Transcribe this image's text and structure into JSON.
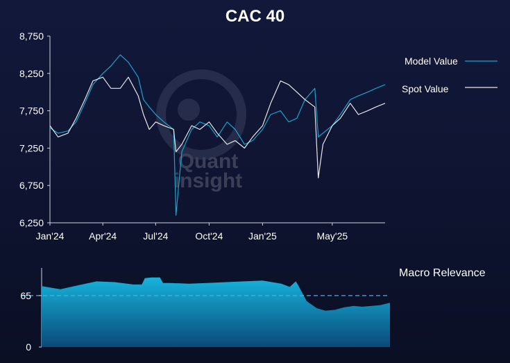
{
  "title": "CAC 40",
  "watermark": {
    "line1": "Quant",
    "line2": "insight"
  },
  "colors": {
    "background": "#0e1430",
    "model_line": "#1aa3cc",
    "spot_line": "#e8e8e8",
    "area_top": "#17b3dc",
    "area_bottom": "#0a4a78",
    "threshold": "#3fb4e6"
  },
  "legend": {
    "model_label": "Model Value",
    "spot_label": "Spot Value"
  },
  "relevance_label": "Macro Relevance",
  "chart_data": [
    {
      "type": "line",
      "title": "CAC 40",
      "xlabel": "",
      "ylabel": "",
      "x_ticks": [
        "Jan'24",
        "Apr'24",
        "Jul'24",
        "Oct'24",
        "Jan'25",
        "May'25"
      ],
      "x_tick_positions": [
        "2024-01-01",
        "2024-04-01",
        "2024-07-01",
        "2024-10-01",
        "2025-01-01",
        "2025-05-01"
      ],
      "xlim": [
        "2024-01-01",
        "2025-07-31"
      ],
      "y_ticks": [
        "6,250",
        "6,750",
        "7,250",
        "7,750",
        "8,250",
        "8,750"
      ],
      "y_tick_values": [
        6250,
        6750,
        7250,
        7750,
        8250,
        8750
      ],
      "ylim": [
        6250,
        8750
      ],
      "grid": false,
      "legend_position": "right",
      "x": [
        "2024-01-01",
        "2024-01-15",
        "2024-02-01",
        "2024-02-15",
        "2024-03-01",
        "2024-03-15",
        "2024-04-01",
        "2024-04-15",
        "2024-05-01",
        "2024-05-15",
        "2024-06-01",
        "2024-06-10",
        "2024-06-20",
        "2024-07-01",
        "2024-07-15",
        "2024-08-01",
        "2024-08-05",
        "2024-08-15",
        "2024-09-01",
        "2024-09-15",
        "2024-10-01",
        "2024-10-15",
        "2024-11-01",
        "2024-11-15",
        "2024-12-01",
        "2024-12-15",
        "2025-01-01",
        "2025-01-15",
        "2025-02-01",
        "2025-02-15",
        "2025-03-01",
        "2025-03-15",
        "2025-04-01",
        "2025-04-07",
        "2025-04-15",
        "2025-05-01",
        "2025-05-15",
        "2025-06-01",
        "2025-06-15",
        "2025-07-01",
        "2025-07-15",
        "2025-07-31"
      ],
      "series": [
        {
          "name": "Model Value",
          "values": [
            7520,
            7450,
            7480,
            7600,
            7850,
            8100,
            8250,
            8350,
            8500,
            8400,
            8200,
            7900,
            7800,
            7700,
            7600,
            7500,
            6350,
            7200,
            7500,
            7600,
            7550,
            7400,
            7600,
            7500,
            7300,
            7350,
            7500,
            7700,
            7750,
            7600,
            7650,
            7900,
            8050,
            7400,
            7450,
            7550,
            7700,
            7900,
            7950,
            8000,
            8050,
            8100
          ]
        },
        {
          "name": "Spot Value",
          "values": [
            7550,
            7400,
            7450,
            7650,
            7900,
            8150,
            8200,
            8050,
            8050,
            8200,
            7950,
            7700,
            7500,
            7600,
            7550,
            7500,
            7200,
            7300,
            7550,
            7500,
            7600,
            7450,
            7300,
            7350,
            7250,
            7400,
            7550,
            7850,
            8150,
            8100,
            8000,
            7900,
            7800,
            6850,
            7300,
            7550,
            7650,
            7850,
            7700,
            7750,
            7800,
            7850
          ]
        }
      ]
    },
    {
      "type": "area",
      "title": "Macro Relevance",
      "y_ticks": [
        "0",
        "65"
      ],
      "y_tick_values": [
        0,
        65
      ],
      "ylim": [
        0,
        100
      ],
      "threshold": 65,
      "x": [
        "2024-01-01",
        "2024-02-01",
        "2024-03-01",
        "2024-04-01",
        "2024-05-01",
        "2024-06-01",
        "2024-06-15",
        "2024-06-20",
        "2024-07-01",
        "2024-07-15",
        "2024-07-20",
        "2024-08-01",
        "2024-09-01",
        "2024-10-01",
        "2024-11-01",
        "2024-12-01",
        "2025-01-01",
        "2025-02-01",
        "2025-02-15",
        "2025-02-25",
        "2025-03-01",
        "2025-03-15",
        "2025-04-01",
        "2025-04-15",
        "2025-05-01",
        "2025-05-15",
        "2025-06-01",
        "2025-06-15",
        "2025-07-01",
        "2025-07-15",
        "2025-07-31"
      ],
      "values": [
        77,
        73,
        78,
        83,
        82,
        79,
        79,
        87,
        88,
        88,
        81,
        81,
        80,
        81,
        82,
        83,
        84,
        80,
        76,
        83,
        78,
        58,
        49,
        46,
        47,
        50,
        52,
        51,
        52,
        53,
        56
      ]
    }
  ]
}
